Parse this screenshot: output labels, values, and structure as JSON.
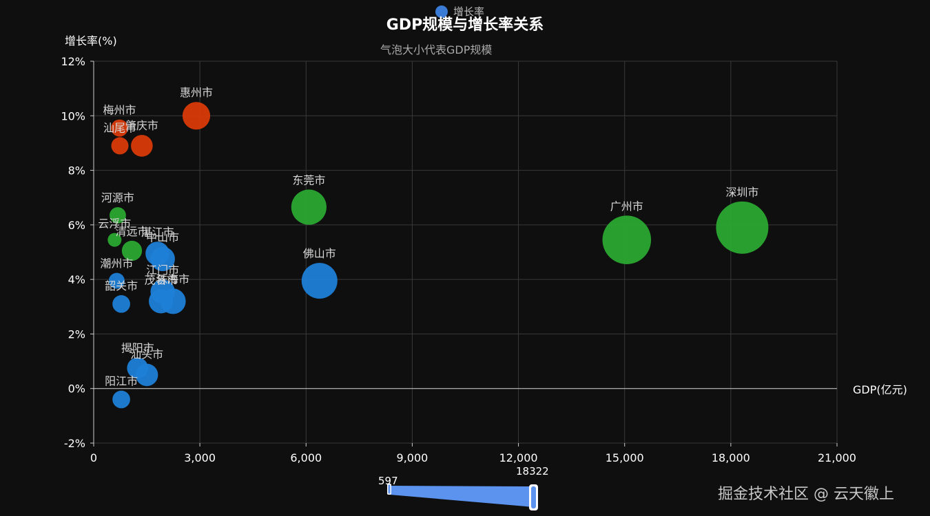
{
  "chart_data": {
    "type": "scatter",
    "title": "GDP规模与增长率关系",
    "subtitle": "气泡大小代表GDP规模",
    "legend": [
      "增长率"
    ],
    "xlabel": "GDP(亿元)",
    "ylabel": "增长率(%)",
    "xlim": [
      0,
      21000
    ],
    "ylim": [
      -2,
      12
    ],
    "x_ticks": [
      "0",
      "3,000",
      "6,000",
      "9,000",
      "12,000",
      "15,000",
      "18,000",
      "21,000"
    ],
    "y_ticks": [
      "-2%",
      "0%",
      "2%",
      "4%",
      "6%",
      "8%",
      "10%",
      "12%"
    ],
    "grid": true,
    "visual_map": {
      "min": "597",
      "max": "18322"
    },
    "points": [
      {
        "name": "深圳市",
        "x": 18322,
        "y": 5.9,
        "color": "#2aa830"
      },
      {
        "name": "广州市",
        "x": 15060,
        "y": 5.45,
        "color": "#2aa830"
      },
      {
        "name": "东莞市",
        "x": 6080,
        "y": 6.65,
        "color": "#2aa830"
      },
      {
        "name": "佛山市",
        "x": 6380,
        "y": 3.95,
        "color": "#1d7fd6"
      },
      {
        "name": "惠州市",
        "x": 2900,
        "y": 10.0,
        "color": "#d93a08"
      },
      {
        "name": "梅州市",
        "x": 730,
        "y": 9.55,
        "color": "#d93a08"
      },
      {
        "name": "汕尾市",
        "x": 740,
        "y": 8.9,
        "color": "#d93a08"
      },
      {
        "name": "肇庆市",
        "x": 1360,
        "y": 8.9,
        "color": "#d93a08"
      },
      {
        "name": "河源市",
        "x": 680,
        "y": 6.35,
        "color": "#2aa830"
      },
      {
        "name": "云浮市",
        "x": 590,
        "y": 5.45,
        "color": "#2aa830"
      },
      {
        "name": "清远市",
        "x": 1080,
        "y": 5.05,
        "color": "#2aa830"
      },
      {
        "name": "湛江市",
        "x": 1800,
        "y": 4.95,
        "color": "#1d7fd6"
      },
      {
        "name": "中山市",
        "x": 1950,
        "y": 4.75,
        "color": "#1d7fd6"
      },
      {
        "name": "潮州市",
        "x": 650,
        "y": 3.95,
        "color": "#1d7fd6"
      },
      {
        "name": "江门市",
        "x": 1950,
        "y": 3.55,
        "color": "#1d7fd6"
      },
      {
        "name": "茂名市",
        "x": 1900,
        "y": 3.2,
        "color": "#1d7fd6"
      },
      {
        "name": "珠海市",
        "x": 2240,
        "y": 3.2,
        "color": "#1d7fd6"
      },
      {
        "name": "韶关市",
        "x": 780,
        "y": 3.1,
        "color": "#1d7fd6"
      },
      {
        "name": "揭阳市",
        "x": 1240,
        "y": 0.75,
        "color": "#1d7fd6"
      },
      {
        "name": "汕头市",
        "x": 1500,
        "y": 0.5,
        "color": "#1d7fd6"
      },
      {
        "name": "阳江市",
        "x": 780,
        "y": -0.4,
        "color": "#1d7fd6"
      }
    ]
  },
  "watermark": "掘金技术社区 @ 云天徽上"
}
